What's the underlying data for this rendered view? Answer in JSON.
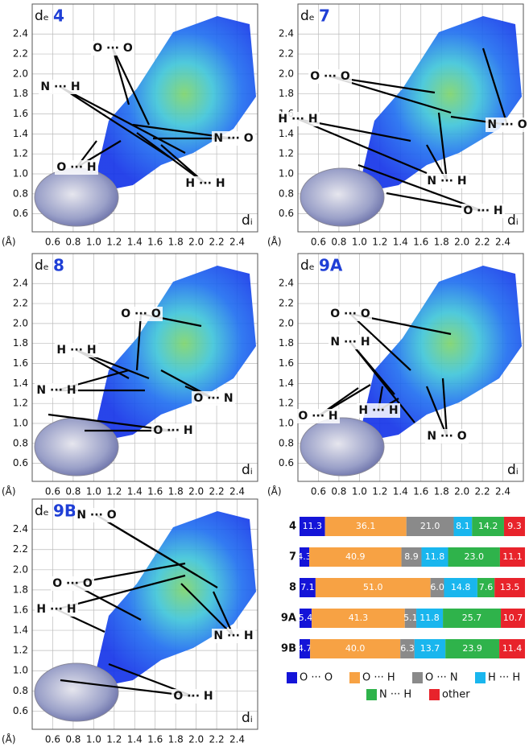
{
  "chart_data": [
    {
      "type": "fingerprint",
      "title": "4",
      "y_label": "dₑ",
      "x_label": "dᵢ",
      "unit_label": "(Å)",
      "xlim": [
        0.4,
        2.6
      ],
      "ylim": [
        0.42,
        2.7
      ],
      "xticks": [
        0.6,
        0.8,
        {
          "value": 1,
          "label": "1.0"
        },
        1.2,
        1.4,
        1.6,
        1.8,
        {
          "value": 2,
          "label": "2.0"
        },
        2.2,
        2.4
      ],
      "yticks": [
        0.6,
        0.8,
        {
          "value": 1,
          "label": "1.0"
        },
        1.2,
        1.4,
        1.6,
        1.8,
        {
          "value": 2,
          "label": "2.0"
        },
        2.2,
        2.4
      ],
      "annotations": [
        "O ··· O",
        "N ··· H",
        "N ··· O",
        "O ··· H",
        "H ··· H"
      ]
    },
    {
      "type": "fingerprint",
      "title": "7",
      "y_label": "dₑ",
      "x_label": "dᵢ",
      "unit_label": "(Å)",
      "xlim": [
        0.4,
        2.6
      ],
      "ylim": [
        0.42,
        2.7
      ],
      "xticks": [
        0.6,
        0.8,
        {
          "value": 1,
          "label": "1.0"
        },
        1.2,
        1.4,
        1.6,
        1.8,
        {
          "value": 2,
          "label": "2.0"
        },
        2.2,
        2.4
      ],
      "yticks": [
        0.6,
        0.8,
        {
          "value": 1,
          "label": "1.0"
        },
        1.2,
        1.4,
        1.6,
        1.8,
        {
          "value": 2,
          "label": "2.0"
        },
        2.2,
        2.4
      ],
      "annotations": [
        "O ··· O",
        "H ··· H",
        "N ··· O",
        "N ··· H",
        "O ··· H"
      ]
    },
    {
      "type": "fingerprint",
      "title": "8",
      "y_label": "dₑ",
      "x_label": "dᵢ",
      "unit_label": "(Å)",
      "xlim": [
        0.4,
        2.6
      ],
      "ylim": [
        0.42,
        2.7
      ],
      "xticks": [
        0.6,
        0.8,
        {
          "value": 1,
          "label": "1.0"
        },
        1.2,
        1.4,
        1.6,
        1.8,
        {
          "value": 2,
          "label": "2.0"
        },
        2.2,
        2.4
      ],
      "yticks": [
        0.6,
        0.8,
        {
          "value": 1,
          "label": "1.0"
        },
        1.2,
        1.4,
        1.6,
        1.8,
        {
          "value": 2,
          "label": "2.0"
        },
        2.2,
        2.4
      ],
      "annotations": [
        "O ··· O",
        "H ··· H",
        "N ··· H",
        "O ··· N",
        "O ··· H"
      ]
    },
    {
      "type": "fingerprint",
      "title": "9A",
      "y_label": "dₑ",
      "x_label": "dᵢ",
      "unit_label": "(Å)",
      "xlim": [
        0.4,
        2.6
      ],
      "ylim": [
        0.42,
        2.7
      ],
      "xticks": [
        0.6,
        0.8,
        {
          "value": 1,
          "label": "1.0"
        },
        1.2,
        1.4,
        1.6,
        1.8,
        {
          "value": 2,
          "label": "2.0"
        },
        2.2,
        2.4
      ],
      "yticks": [
        0.6,
        0.8,
        {
          "value": 1,
          "label": "1.0"
        },
        1.2,
        1.4,
        1.6,
        1.8,
        {
          "value": 2,
          "label": "2.0"
        },
        2.2,
        2.4
      ],
      "annotations": [
        "O ··· O",
        "N ··· H",
        "H ··· H",
        "O ··· H",
        "N ··· O"
      ]
    },
    {
      "type": "fingerprint",
      "title": "9B",
      "y_label": "dₑ",
      "x_label": "dᵢ",
      "unit_label": "(Å)",
      "xlim": [
        0.4,
        2.6
      ],
      "ylim": [
        0.42,
        2.7
      ],
      "xticks": [
        0.6,
        0.8,
        {
          "value": 1,
          "label": "1.0"
        },
        1.2,
        1.4,
        1.6,
        1.8,
        {
          "value": 2,
          "label": "2.0"
        },
        2.2,
        2.4
      ],
      "yticks": [
        0.6,
        0.8,
        {
          "value": 1,
          "label": "1.0"
        },
        1.2,
        1.4,
        1.6,
        1.8,
        {
          "value": 2,
          "label": "2.0"
        },
        2.2,
        2.4
      ],
      "annotations": [
        "N ··· O",
        "O ··· O",
        "H ··· H",
        "N ··· H",
        "O ··· H"
      ]
    },
    {
      "type": "bar",
      "orientation": "horizontal",
      "stacked": true,
      "legend": "bottom",
      "categories": [
        "4",
        "7",
        "8",
        "9A",
        "9B"
      ],
      "series": [
        {
          "name": "O ··· O",
          "color": "#1414d8",
          "values": [
            11.3,
            4.3,
            7.1,
            5.4,
            4.7
          ],
          "value_labels": [
            "11.3",
            "4.3",
            "7.1",
            "5.4",
            "4.7"
          ]
        },
        {
          "name": "O ··· H",
          "color": "#f7a244",
          "values": [
            36.1,
            40.9,
            51,
            41.3,
            40
          ],
          "value_labels": [
            "36.1",
            "40.9",
            "51.0",
            "41.3",
            "40.0"
          ]
        },
        {
          "name": "O ··· N",
          "color": "#8a8a8a",
          "values": [
            21,
            8.9,
            6,
            5.1,
            6.3
          ],
          "value_labels": [
            "21.0",
            "8.9",
            "6.0",
            "5.1",
            "6.3"
          ]
        },
        {
          "name": "H ··· H",
          "color": "#19b6ee",
          "values": [
            8.1,
            11.8,
            14.8,
            11.8,
            13.7
          ],
          "value_labels": [
            "8.1",
            "11.8",
            "14.8",
            "11.8",
            "13.7"
          ]
        },
        {
          "name": "N ··· H",
          "color": "#2fb34b",
          "values": [
            14.2,
            23,
            7.6,
            25.7,
            23.9
          ],
          "value_labels": [
            "14.2",
            "23.0",
            "7.6",
            "25.7",
            "23.9"
          ]
        },
        {
          "name": "other",
          "color": "#e8232b",
          "values": [
            9.3,
            11.1,
            13.5,
            10.7,
            11.4
          ],
          "value_labels": [
            "9.3",
            "11.1",
            "13.5",
            "10.7",
            "11.4"
          ]
        }
      ]
    }
  ]
}
